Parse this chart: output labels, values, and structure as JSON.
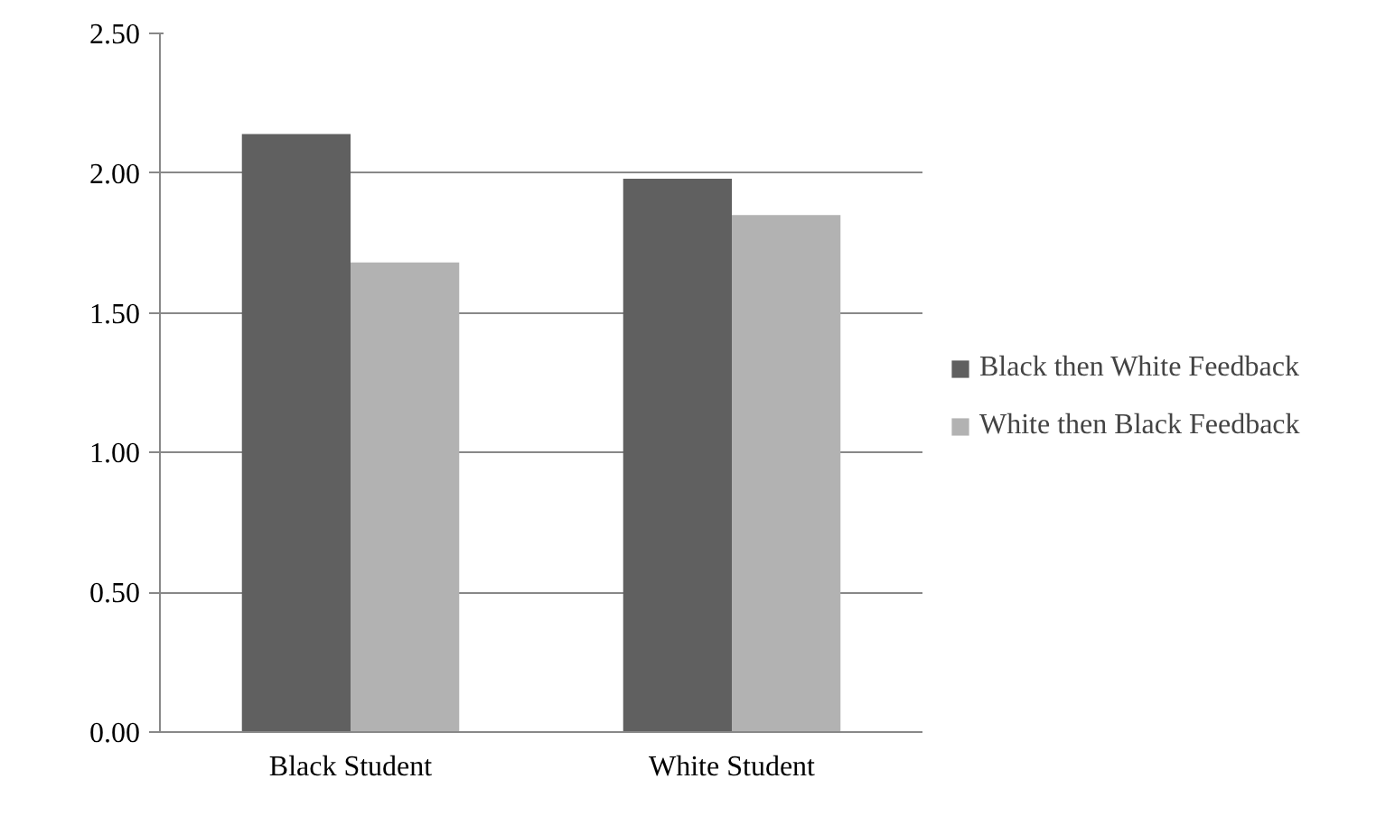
{
  "chart_data": {
    "type": "bar",
    "categories": [
      "Black Student",
      "White Student"
    ],
    "series": [
      {
        "name": "Black then White Feedback",
        "color": "#606060",
        "values": [
          2.14,
          1.98
        ]
      },
      {
        "name": "White then Black Feedback",
        "color": "#b2b2b2",
        "values": [
          1.68,
          1.85
        ]
      }
    ],
    "ylim": [
      0,
      2.5
    ],
    "yticks": [
      {
        "value": 0,
        "label": "0.00"
      },
      {
        "value": 0.5,
        "label": "0.50"
      },
      {
        "value": 1,
        "label": "1.00"
      },
      {
        "value": 1.5,
        "label": "1.50"
      },
      {
        "value": 2,
        "label": "2.00"
      },
      {
        "value": 2.5,
        "label": "2.50"
      }
    ],
    "grid": "y",
    "legend": "right"
  }
}
